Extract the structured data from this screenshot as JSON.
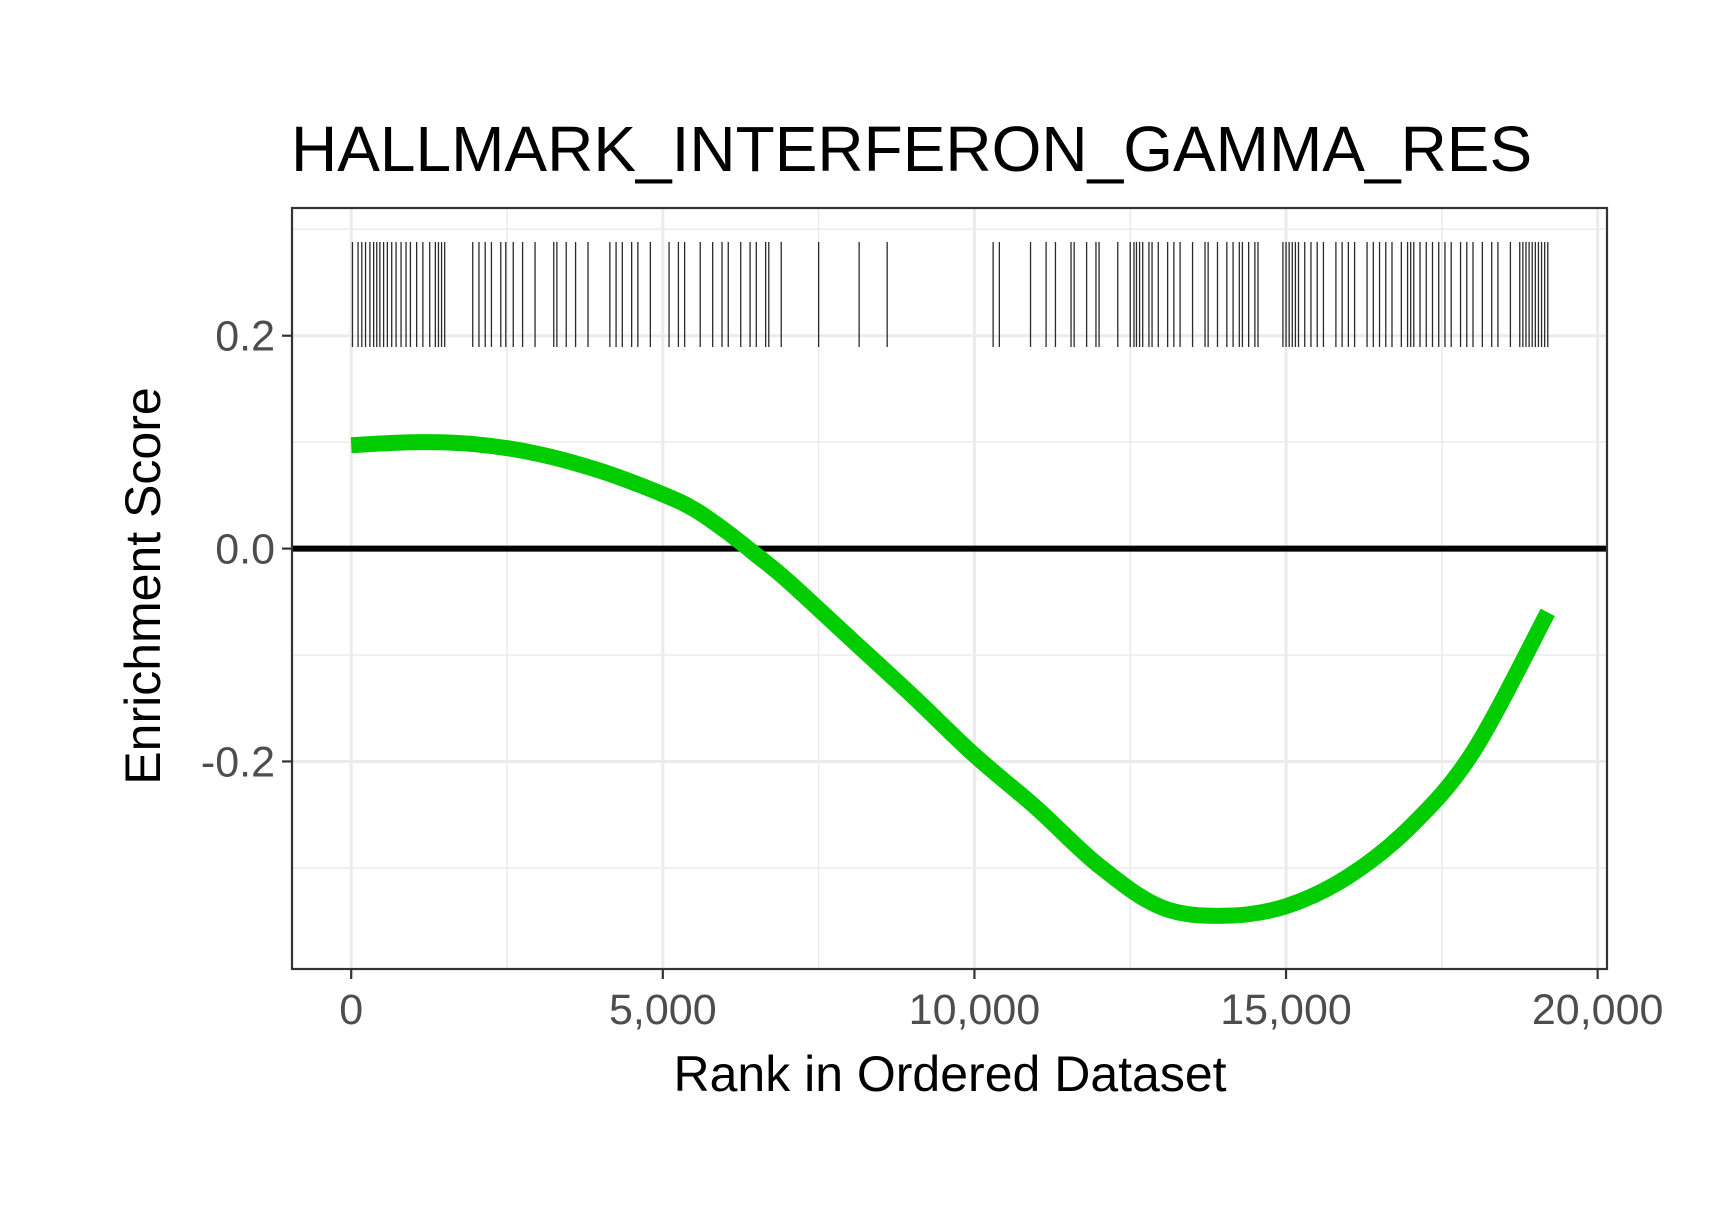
{
  "chart_data": {
    "type": "line",
    "title": "HALLMARK_INTERFERON_GAMMA_RES",
    "xlabel": "Rank in Ordered Dataset",
    "ylabel": "Enrichment Score",
    "xlim": [
      -950,
      20150
    ],
    "ylim": [
      -0.395,
      0.32
    ],
    "x_ticks": [
      0,
      5000,
      10000,
      15000,
      20000
    ],
    "x_tick_labels": [
      "0",
      "5,000",
      "10,000",
      "15,000",
      "20,000"
    ],
    "y_ticks": [
      -0.2,
      0.0,
      0.2
    ],
    "y_tick_labels": [
      "-0.2",
      "0.0",
      "0.2"
    ],
    "grid": true,
    "zero_line": 0,
    "series": [
      {
        "color": "#00cc00",
        "x": [
          0,
          1000,
          2000,
          3000,
          4000,
          5000,
          5500,
          6000,
          6500,
          7000,
          8000,
          9000,
          10000,
          11000,
          12000,
          13000,
          14000,
          15000,
          16000,
          17000,
          18000,
          19200
        ],
        "y": [
          0.097,
          0.1,
          0.098,
          0.089,
          0.073,
          0.051,
          0.037,
          0.017,
          -0.006,
          -0.03,
          -0.084,
          -0.138,
          -0.194,
          -0.244,
          -0.298,
          -0.337,
          -0.345,
          -0.336,
          -0.308,
          -0.261,
          -0.191,
          -0.06
        ]
      }
    ],
    "gene_ticks": [
      {
        "x": [
          20,
          110,
          170,
          230,
          300,
          360,
          410,
          460,
          520,
          580,
          650,
          720,
          800,
          880,
          950,
          1050,
          1150,
          1260,
          1350,
          1400,
          1450,
          1500
        ]
      },
      {
        "x": [
          1950,
          2050,
          2150,
          2250,
          2400,
          2480,
          2600,
          2750,
          2950,
          3250,
          3300,
          3450,
          3600,
          3800,
          4150,
          4250,
          4350,
          4500,
          4600,
          4800,
          5100,
          5250,
          5350,
          5600,
          5800,
          5950,
          6050,
          6250,
          6400,
          6500,
          6650,
          6700,
          6900
        ]
      },
      {
        "x": [
          7500,
          8150,
          8600
        ]
      },
      {
        "x": [
          10300,
          10400,
          10900,
          11150,
          11300,
          11550,
          11600,
          11800,
          11950,
          12000,
          12300,
          12500,
          12560,
          12600,
          12650,
          12700,
          12800,
          12850,
          12950,
          13100,
          13200,
          13300,
          13500,
          13700,
          13750,
          13900,
          14050,
          14150,
          14250,
          14300,
          14400,
          14500,
          14550
        ]
      },
      {
        "x": [
          14950,
          15000,
          15050,
          15100,
          15150,
          15200,
          15300,
          15400,
          15500,
          15600,
          15800,
          15900,
          16000,
          16100,
          16300,
          16400,
          16500,
          16600,
          16700,
          16850,
          16950,
          17000,
          17050,
          17150,
          17250,
          17350,
          17450,
          17550,
          17650,
          17800,
          17900,
          18000,
          18150,
          18300,
          18400,
          18600,
          18750,
          18800,
          18850,
          18900,
          18950,
          19000,
          19050,
          19100,
          19150,
          19200
        ]
      }
    ]
  }
}
